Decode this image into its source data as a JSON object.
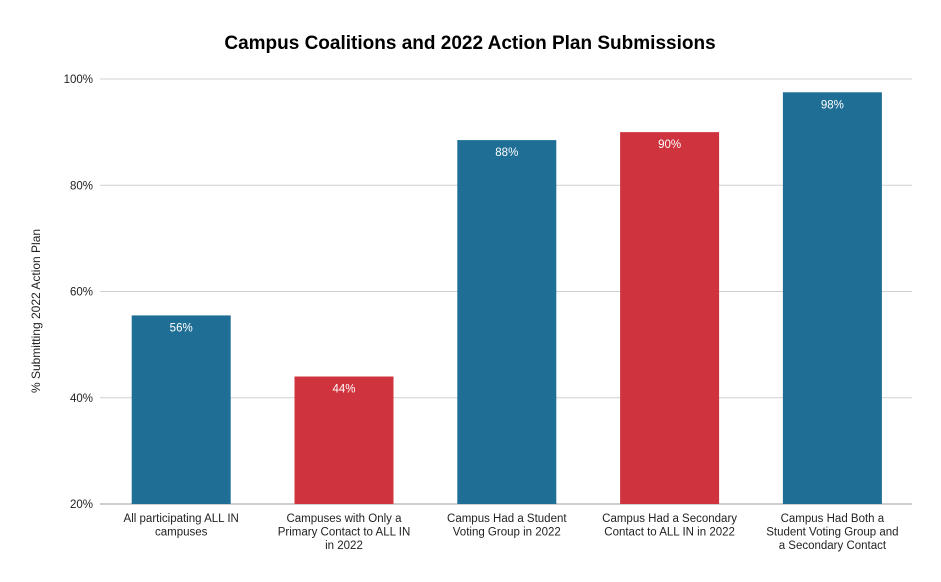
{
  "chart_data": {
    "type": "bar",
    "title": "Campus Coalitions and 2022 Action Plan Submissions",
    "xlabel": "",
    "ylabel": "% Submitting 2022 Action Plan",
    "ylim": [
      20,
      100
    ],
    "yticks": [
      20,
      40,
      60,
      80,
      100
    ],
    "ytick_labels": [
      "20%",
      "40%",
      "60%",
      "80%",
      "100%"
    ],
    "grid": true,
    "categories": [
      [
        "All participating ALL IN",
        "campuses"
      ],
      [
        "Campuses with Only a",
        "Primary Contact to ALL IN",
        "in 2022"
      ],
      [
        "Campus Had a Student",
        "Voting Group in 2022"
      ],
      [
        "Campus Had a Secondary",
        "Contact to ALL IN in 2022"
      ],
      [
        "Campus Had Both a",
        "Student Voting Group and",
        "a Secondary Contact"
      ]
    ],
    "values": [
      55.5,
      44,
      88.5,
      90,
      97.5
    ],
    "data_labels": [
      "56%",
      "44%",
      "88%",
      "90%",
      "98%"
    ],
    "colors": [
      "#1f6e96",
      "#cf333d",
      "#1f6e96",
      "#cf333d",
      "#1f6e96"
    ]
  }
}
